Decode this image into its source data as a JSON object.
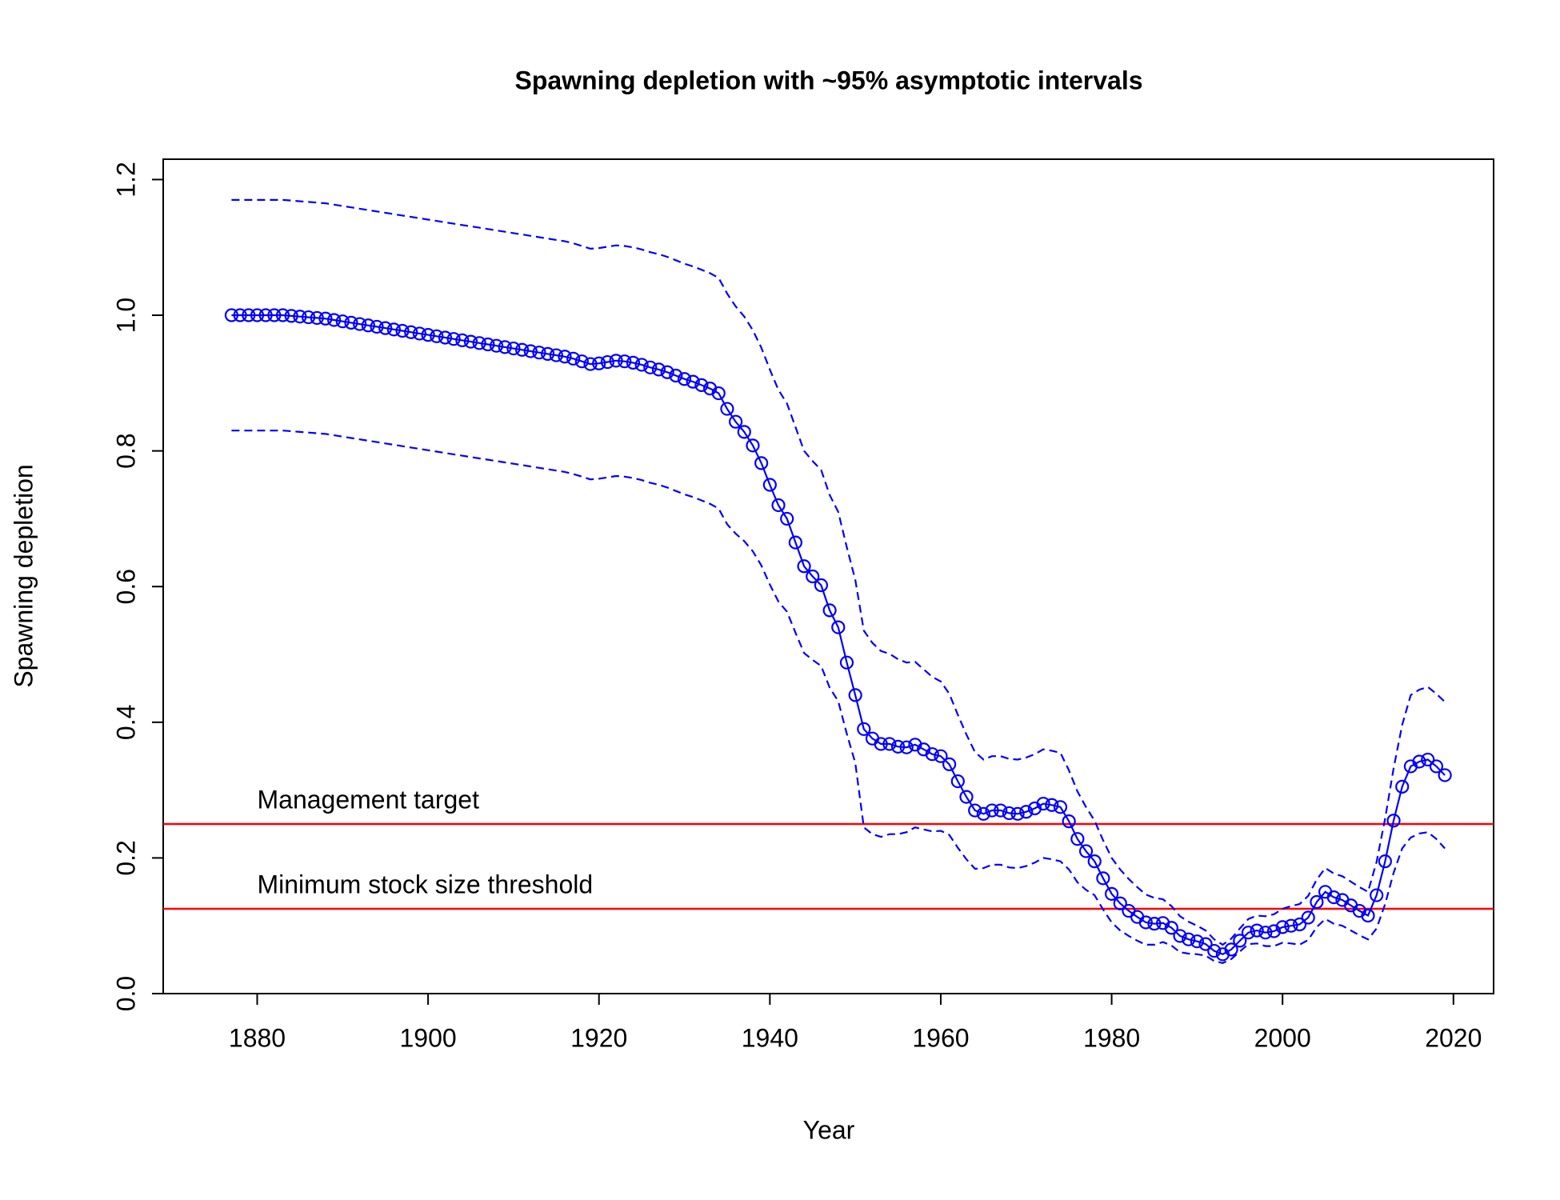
{
  "chart_data": {
    "type": "line",
    "title": "Spawning depletion with ~95% asymptotic intervals",
    "xlabel": "Year",
    "ylabel": "Spawning depletion",
    "xlim": [
      1869,
      2024.7
    ],
    "ylim": [
      0,
      1.23
    ],
    "xticks": [
      1880,
      1900,
      1920,
      1940,
      1960,
      1980,
      2000,
      2020
    ],
    "yticks": [
      {
        "value": 0,
        "label": "0.0"
      },
      {
        "value": 0.2,
        "label": "0.2"
      },
      {
        "value": 0.4,
        "label": "0.4"
      },
      {
        "value": 0.6,
        "label": "0.6"
      },
      {
        "value": 0.8,
        "label": "0.8"
      },
      {
        "value": 1,
        "label": "1.0"
      },
      {
        "value": 1.2,
        "label": "1.2"
      }
    ],
    "hlines": [
      {
        "label": "Management target",
        "value": 0.25,
        "color": "#ff0000"
      },
      {
        "label": "Minimum stock size threshold",
        "value": 0.125,
        "color": "#ff0000"
      }
    ],
    "x": [
      1877,
      1878,
      1879,
      1880,
      1881,
      1882,
      1883,
      1884,
      1885,
      1886,
      1887,
      1888,
      1889,
      1890,
      1891,
      1892,
      1893,
      1894,
      1895,
      1896,
      1897,
      1898,
      1899,
      1900,
      1901,
      1902,
      1903,
      1904,
      1905,
      1906,
      1907,
      1908,
      1909,
      1910,
      1911,
      1912,
      1913,
      1914,
      1915,
      1916,
      1917,
      1918,
      1919,
      1920,
      1921,
      1922,
      1923,
      1924,
      1925,
      1926,
      1927,
      1928,
      1929,
      1930,
      1931,
      1932,
      1933,
      1934,
      1935,
      1936,
      1937,
      1938,
      1939,
      1940,
      1941,
      1942,
      1943,
      1944,
      1945,
      1946,
      1947,
      1948,
      1949,
      1950,
      1951,
      1952,
      1953,
      1954,
      1955,
      1956,
      1957,
      1958,
      1959,
      1960,
      1961,
      1962,
      1963,
      1964,
      1965,
      1966,
      1967,
      1968,
      1969,
      1970,
      1971,
      1972,
      1973,
      1974,
      1975,
      1976,
      1977,
      1978,
      1979,
      1980,
      1981,
      1982,
      1983,
      1984,
      1985,
      1986,
      1987,
      1988,
      1989,
      1990,
      1991,
      1992,
      1993,
      1994,
      1995,
      1996,
      1997,
      1998,
      1999,
      2000,
      2001,
      2002,
      2003,
      2004,
      2005,
      2006,
      2007,
      2008,
      2009,
      2010,
      2011,
      2012,
      2013,
      2014,
      2015,
      2016,
      2017,
      2018,
      2019
    ],
    "series": [
      {
        "color": "#0000ff",
        "style": "points-line",
        "values": [
          1.0,
          1.0,
          1.0,
          1.0,
          1.0,
          1.0,
          1.0,
          0.999,
          0.998,
          0.997,
          0.996,
          0.995,
          0.993,
          0.991,
          0.989,
          0.987,
          0.985,
          0.983,
          0.981,
          0.979,
          0.977,
          0.975,
          0.973,
          0.971,
          0.969,
          0.967,
          0.965,
          0.963,
          0.961,
          0.959,
          0.957,
          0.955,
          0.953,
          0.951,
          0.949,
          0.947,
          0.945,
          0.943,
          0.941,
          0.939,
          0.936,
          0.932,
          0.928,
          0.929,
          0.931,
          0.933,
          0.932,
          0.93,
          0.927,
          0.923,
          0.92,
          0.916,
          0.911,
          0.906,
          0.902,
          0.897,
          0.892,
          0.885,
          0.862,
          0.843,
          0.828,
          0.808,
          0.782,
          0.75,
          0.72,
          0.7,
          0.665,
          0.63,
          0.615,
          0.602,
          0.565,
          0.54,
          0.488,
          0.44,
          0.39,
          0.376,
          0.368,
          0.368,
          0.364,
          0.363,
          0.367,
          0.36,
          0.353,
          0.35,
          0.338,
          0.313,
          0.29,
          0.27,
          0.265,
          0.27,
          0.27,
          0.266,
          0.265,
          0.268,
          0.273,
          0.28,
          0.278,
          0.275,
          0.254,
          0.228,
          0.21,
          0.195,
          0.17,
          0.147,
          0.133,
          0.122,
          0.113,
          0.105,
          0.103,
          0.104,
          0.097,
          0.085,
          0.08,
          0.077,
          0.073,
          0.063,
          0.058,
          0.065,
          0.078,
          0.09,
          0.093,
          0.09,
          0.092,
          0.098,
          0.1,
          0.102,
          0.112,
          0.135,
          0.15,
          0.142,
          0.138,
          0.13,
          0.122,
          0.115,
          0.145,
          0.195,
          0.255,
          0.305,
          0.335,
          0.342,
          0.345,
          0.335,
          0.322
        ]
      },
      {
        "color": "#0000ff",
        "style": "dashed",
        "values": [
          1.17,
          1.17,
          1.17,
          1.17,
          1.17,
          1.17,
          1.17,
          1.169,
          1.168,
          1.167,
          1.166,
          1.165,
          1.163,
          1.161,
          1.159,
          1.157,
          1.155,
          1.153,
          1.151,
          1.149,
          1.147,
          1.145,
          1.143,
          1.141,
          1.139,
          1.137,
          1.135,
          1.133,
          1.131,
          1.129,
          1.127,
          1.125,
          1.123,
          1.121,
          1.119,
          1.117,
          1.115,
          1.113,
          1.111,
          1.109,
          1.106,
          1.102,
          1.098,
          1.099,
          1.101,
          1.103,
          1.102,
          1.1,
          1.097,
          1.093,
          1.09,
          1.086,
          1.081,
          1.076,
          1.072,
          1.067,
          1.062,
          1.055,
          1.032,
          1.013,
          0.998,
          0.978,
          0.952,
          0.92,
          0.89,
          0.87,
          0.835,
          0.8,
          0.785,
          0.772,
          0.735,
          0.71,
          0.658,
          0.61,
          0.535,
          0.517,
          0.505,
          0.501,
          0.493,
          0.488,
          0.489,
          0.478,
          0.467,
          0.46,
          0.442,
          0.411,
          0.382,
          0.356,
          0.345,
          0.35,
          0.35,
          0.346,
          0.345,
          0.348,
          0.353,
          0.36,
          0.358,
          0.355,
          0.329,
          0.298,
          0.275,
          0.255,
          0.226,
          0.2,
          0.183,
          0.169,
          0.157,
          0.146,
          0.141,
          0.139,
          0.129,
          0.114,
          0.106,
          0.1,
          0.093,
          0.08,
          0.072,
          0.081,
          0.096,
          0.11,
          0.115,
          0.114,
          0.117,
          0.125,
          0.129,
          0.132,
          0.144,
          0.168,
          0.185,
          0.177,
          0.173,
          0.165,
          0.157,
          0.15,
          0.194,
          0.258,
          0.332,
          0.396,
          0.44,
          0.448,
          0.452,
          0.442,
          0.43
        ]
      },
      {
        "color": "#0000ff",
        "style": "dashed",
        "values": [
          0.83,
          0.83,
          0.83,
          0.83,
          0.83,
          0.83,
          0.83,
          0.829,
          0.828,
          0.827,
          0.826,
          0.825,
          0.823,
          0.821,
          0.819,
          0.817,
          0.815,
          0.813,
          0.811,
          0.809,
          0.807,
          0.805,
          0.803,
          0.801,
          0.799,
          0.797,
          0.795,
          0.793,
          0.791,
          0.789,
          0.787,
          0.785,
          0.783,
          0.781,
          0.779,
          0.777,
          0.775,
          0.773,
          0.771,
          0.769,
          0.766,
          0.762,
          0.758,
          0.759,
          0.761,
          0.763,
          0.762,
          0.76,
          0.757,
          0.753,
          0.75,
          0.746,
          0.741,
          0.736,
          0.732,
          0.727,
          0.722,
          0.715,
          0.692,
          0.678,
          0.667,
          0.652,
          0.631,
          0.603,
          0.578,
          0.563,
          0.532,
          0.502,
          0.492,
          0.483,
          0.451,
          0.431,
          0.383,
          0.34,
          0.245,
          0.235,
          0.231,
          0.235,
          0.235,
          0.238,
          0.245,
          0.242,
          0.239,
          0.24,
          0.234,
          0.215,
          0.198,
          0.184,
          0.185,
          0.19,
          0.19,
          0.186,
          0.185,
          0.188,
          0.193,
          0.2,
          0.198,
          0.195,
          0.183,
          0.164,
          0.153,
          0.145,
          0.124,
          0.105,
          0.093,
          0.085,
          0.078,
          0.072,
          0.072,
          0.076,
          0.071,
          0.061,
          0.059,
          0.058,
          0.056,
          0.048,
          0.045,
          0.051,
          0.062,
          0.073,
          0.074,
          0.07,
          0.07,
          0.075,
          0.074,
          0.072,
          0.079,
          0.098,
          0.11,
          0.103,
          0.1,
          0.093,
          0.086,
          0.08,
          0.096,
          0.132,
          0.178,
          0.214,
          0.23,
          0.236,
          0.238,
          0.228,
          0.214
        ]
      }
    ]
  }
}
